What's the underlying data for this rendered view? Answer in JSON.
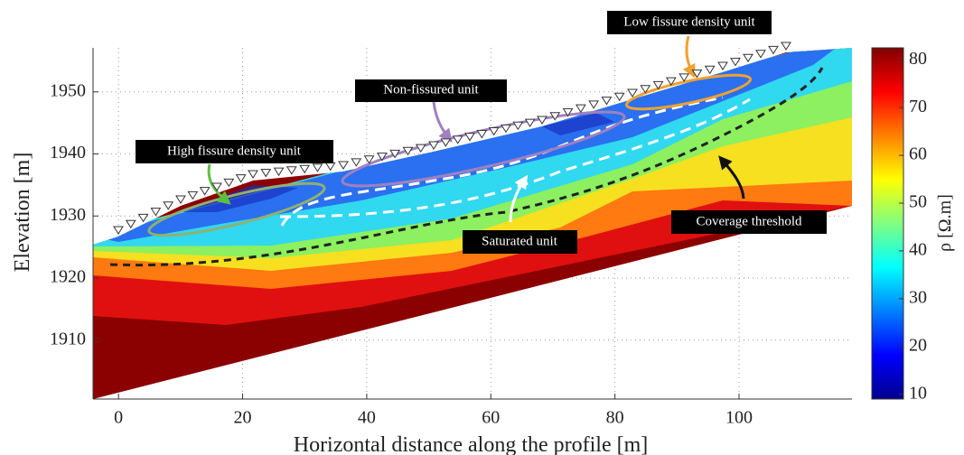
{
  "chart_data": {
    "type": "resistivity-section",
    "x_label": "Horizontal distance along the profile [m]",
    "y_label": "Elevation [m]",
    "colorbar_label": "ρ [Ω.m]",
    "xlim": [
      -4.1,
      118.2
    ],
    "xticks": [
      0,
      20,
      40,
      60,
      80,
      100
    ],
    "ylim": [
      1900.5,
      1957.1
    ],
    "yticks": [
      1910,
      1920,
      1930,
      1940,
      1950
    ],
    "clim": [
      9,
      82.5
    ],
    "cticks": [
      10,
      20,
      30,
      40,
      50,
      60,
      70,
      80
    ],
    "colormap": "jet",
    "grid": true,
    "annotations": [
      "Low fissure density unit",
      "Non-fissured unit",
      "High fissure density unit",
      "Saturated unit",
      "Coverage threshold"
    ]
  }
}
